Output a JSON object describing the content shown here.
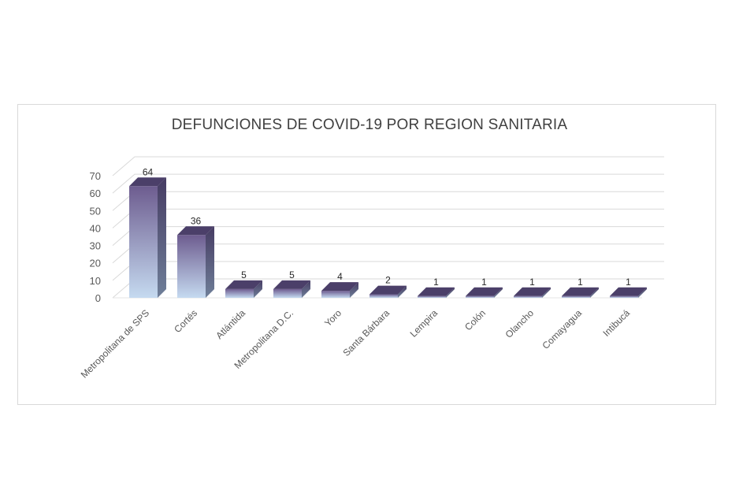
{
  "chart_data": {
    "type": "bar",
    "style": "3d-column",
    "title": "DEFUNCIONES DE COVID-19 POR REGION SANITARIA",
    "categories": [
      "Metropolitana de SPS",
      "Cortés",
      "Atlántida",
      "Metropolitana D.C.",
      "Yoro",
      "Santa Bárbara",
      "Lempira",
      "Colón",
      "Olancho",
      "Comayagua",
      "Intibucá"
    ],
    "values": [
      64,
      36,
      5,
      5,
      4,
      2,
      1,
      1,
      1,
      1,
      1
    ],
    "data_labels": [
      "64",
      "36",
      "5",
      "5",
      "4",
      "2",
      "1",
      "1",
      "1",
      "1",
      "1"
    ],
    "ylim": [
      0,
      70
    ],
    "yticks": [
      "0",
      "10",
      "20",
      "30",
      "40",
      "50",
      "60",
      "70"
    ],
    "xlabel": "",
    "ylabel": "",
    "grid": true,
    "legend": "none",
    "colors": {
      "top": "#7a6a99",
      "bottom": "#bdd3ec",
      "side": "#4f4670",
      "cap": "#4b3f69",
      "grid": "#d9d9d9"
    }
  }
}
